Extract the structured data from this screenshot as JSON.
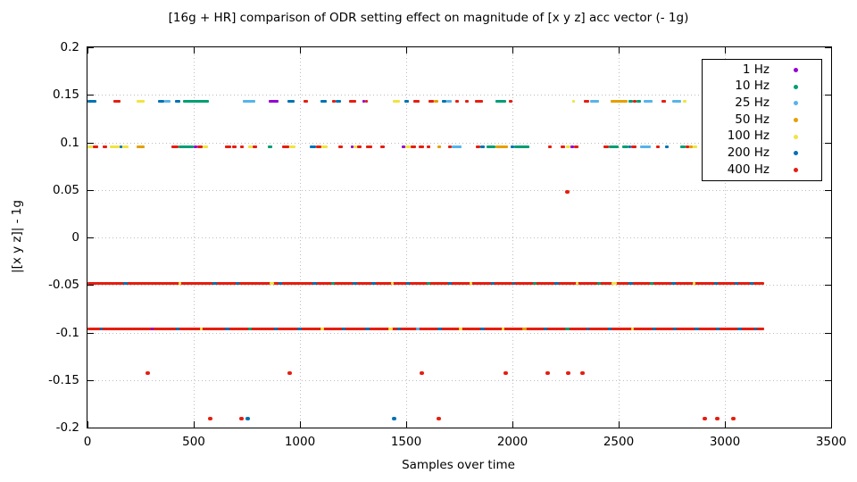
{
  "chart_data": {
    "type": "scatter",
    "title": "[16g + HR] comparison of ODR setting effect on magnitude of [x y z] acc vector (- 1g)",
    "xlabel": "Samples over time",
    "ylabel": "|[x y z]| - 1g",
    "xlim": [
      0,
      3500
    ],
    "ylim": [
      -0.2,
      0.2
    ],
    "xticks": [
      0,
      500,
      1000,
      1500,
      2000,
      2500,
      3000,
      3500
    ],
    "yticks": [
      0.2,
      0.15,
      0.1,
      0.05,
      0,
      -0.05,
      -0.1,
      -0.15,
      -0.2
    ],
    "grid": true,
    "grid_color": "#bcbcbc",
    "legend_position": "top-right",
    "series": [
      {
        "name": "1 Hz",
        "color": "#9400d3"
      },
      {
        "name": "10 Hz",
        "color": "#009e73"
      },
      {
        "name": "25 Hz",
        "color": "#56b4e9"
      },
      {
        "name": "50 Hz",
        "color": "#e69f00"
      },
      {
        "name": "100 Hz",
        "color": "#f0e442"
      },
      {
        "name": "200 Hz",
        "color": "#0072b2"
      },
      {
        "name": "400 Hz",
        "color": "#e51e10"
      }
    ],
    "bands": [
      {
        "y": 0.143,
        "x_range": [
          0,
          2870
        ],
        "segments": [
          [
            0,
            40,
            5
          ],
          [
            120,
            155,
            6
          ],
          [
            230,
            270,
            4
          ],
          [
            330,
            360,
            5
          ],
          [
            360,
            390,
            2
          ],
          [
            413,
            438,
            5
          ],
          [
            450,
            570,
            1
          ],
          [
            730,
            790,
            2
          ],
          [
            855,
            900,
            0
          ],
          [
            940,
            975,
            5
          ],
          [
            1018,
            1036,
            6
          ],
          [
            1095,
            1125,
            5
          ],
          [
            1150,
            1170,
            6
          ],
          [
            1170,
            1195,
            5
          ],
          [
            1230,
            1265,
            6
          ],
          [
            1296,
            1306,
            0
          ],
          [
            1308,
            1320,
            6
          ],
          [
            1437,
            1470,
            4
          ],
          [
            1490,
            1513,
            5
          ],
          [
            1533,
            1562,
            6
          ],
          [
            1604,
            1630,
            6
          ],
          [
            1630,
            1652,
            3
          ],
          [
            1667,
            1690,
            5
          ],
          [
            1690,
            1713,
            2
          ],
          [
            1733,
            1750,
            6
          ],
          [
            1778,
            1795,
            6
          ],
          [
            1825,
            1862,
            6
          ],
          [
            1920,
            1972,
            1
          ],
          [
            1985,
            2000,
            6
          ],
          [
            2283,
            2296,
            4
          ],
          [
            2338,
            2360,
            6
          ],
          [
            2367,
            2408,
            2
          ],
          [
            2462,
            2542,
            3
          ],
          [
            2546,
            2566,
            1
          ],
          [
            2566,
            2582,
            6
          ],
          [
            2582,
            2604,
            1
          ],
          [
            2617,
            2658,
            2
          ],
          [
            2700,
            2722,
            6
          ],
          [
            2750,
            2796,
            2
          ],
          [
            2804,
            2818,
            4
          ]
        ]
      },
      {
        "y": 0.095,
        "x_range": [
          0,
          2870
        ],
        "segments": [
          [
            0,
            25,
            4
          ],
          [
            25,
            50,
            6
          ],
          [
            70,
            92,
            6
          ],
          [
            105,
            150,
            4
          ],
          [
            150,
            163,
            5
          ],
          [
            163,
            195,
            4
          ],
          [
            229,
            271,
            3
          ],
          [
            396,
            430,
            6
          ],
          [
            430,
            500,
            1
          ],
          [
            500,
            515,
            0
          ],
          [
            515,
            540,
            6
          ],
          [
            540,
            567,
            4
          ],
          [
            648,
            678,
            6
          ],
          [
            682,
            702,
            6
          ],
          [
            718,
            735,
            6
          ],
          [
            758,
            778,
            4
          ],
          [
            778,
            800,
            6
          ],
          [
            848,
            870,
            1
          ],
          [
            918,
            950,
            6
          ],
          [
            950,
            980,
            4
          ],
          [
            1048,
            1075,
            5
          ],
          [
            1075,
            1100,
            6
          ],
          [
            1100,
            1130,
            4
          ],
          [
            1180,
            1202,
            6
          ],
          [
            1240,
            1252,
            0
          ],
          [
            1252,
            1270,
            4
          ],
          [
            1270,
            1292,
            6
          ],
          [
            1310,
            1340,
            6
          ],
          [
            1378,
            1400,
            6
          ],
          [
            1478,
            1494,
            0
          ],
          [
            1494,
            1520,
            4
          ],
          [
            1520,
            1545,
            6
          ],
          [
            1558,
            1582,
            6
          ],
          [
            1598,
            1615,
            6
          ],
          [
            1648,
            1665,
            3
          ],
          [
            1698,
            1715,
            6
          ],
          [
            1715,
            1760,
            2
          ],
          [
            1828,
            1850,
            6
          ],
          [
            1850,
            1870,
            5
          ],
          [
            1880,
            1920,
            1
          ],
          [
            1920,
            1980,
            3
          ],
          [
            1990,
            2010,
            5
          ],
          [
            2010,
            2080,
            1
          ],
          [
            2168,
            2185,
            6
          ],
          [
            2228,
            2250,
            6
          ],
          [
            2250,
            2275,
            4
          ],
          [
            2275,
            2290,
            0
          ],
          [
            2290,
            2312,
            6
          ],
          [
            2430,
            2455,
            6
          ],
          [
            2455,
            2500,
            1
          ],
          [
            2518,
            2545,
            1
          ],
          [
            2545,
            2560,
            5
          ],
          [
            2560,
            2582,
            6
          ],
          [
            2600,
            2650,
            2
          ],
          [
            2678,
            2695,
            6
          ],
          [
            2718,
            2735,
            5
          ],
          [
            2788,
            2815,
            1
          ],
          [
            2815,
            2830,
            6
          ],
          [
            2830,
            2850,
            3
          ],
          [
            2850,
            2870,
            4
          ]
        ]
      },
      {
        "y": -0.048,
        "x_range": [
          0,
          3185
        ],
        "base": 6,
        "interruptions": [
          [
            168,
            188,
            5
          ],
          [
            428,
            443,
            4
          ],
          [
            588,
            608,
            5
          ],
          [
            698,
            713,
            5
          ],
          [
            858,
            878,
            4
          ],
          [
            898,
            918,
            5
          ],
          [
            1058,
            1078,
            5
          ],
          [
            1148,
            1163,
            1
          ],
          [
            1248,
            1268,
            5
          ],
          [
            1338,
            1358,
            5
          ],
          [
            1428,
            1443,
            4
          ],
          [
            1498,
            1518,
            5
          ],
          [
            1598,
            1613,
            1
          ],
          [
            1698,
            1713,
            5
          ],
          [
            1798,
            1813,
            4
          ],
          [
            1898,
            1918,
            5
          ],
          [
            1998,
            2013,
            5
          ],
          [
            2098,
            2113,
            1
          ],
          [
            2198,
            2218,
            5
          ],
          [
            2298,
            2313,
            4
          ],
          [
            2398,
            2418,
            1
          ],
          [
            2468,
            2493,
            4
          ],
          [
            2548,
            2568,
            5
          ],
          [
            2648,
            2663,
            1
          ],
          [
            2748,
            2768,
            5
          ],
          [
            2848,
            2863,
            4
          ],
          [
            2948,
            2968,
            5
          ],
          [
            3048,
            3063,
            5
          ],
          [
            3118,
            3133,
            5
          ]
        ]
      },
      {
        "y": -0.096,
        "x_range": [
          0,
          3185
        ],
        "base": 6,
        "interruptions": [
          [
            58,
            73,
            5
          ],
          [
            298,
            313,
            0
          ],
          [
            418,
            433,
            5
          ],
          [
            528,
            543,
            4
          ],
          [
            648,
            668,
            5
          ],
          [
            758,
            773,
            1
          ],
          [
            878,
            893,
            5
          ],
          [
            988,
            1008,
            5
          ],
          [
            1098,
            1113,
            4
          ],
          [
            1198,
            1213,
            5
          ],
          [
            1308,
            1328,
            5
          ],
          [
            1418,
            1438,
            4
          ],
          [
            1458,
            1473,
            5
          ],
          [
            1548,
            1563,
            2
          ],
          [
            1648,
            1668,
            5
          ],
          [
            1748,
            1763,
            4
          ],
          [
            1848,
            1868,
            5
          ],
          [
            1948,
            1963,
            4
          ],
          [
            2048,
            2068,
            3
          ],
          [
            2148,
            2163,
            5
          ],
          [
            2248,
            2268,
            1
          ],
          [
            2348,
            2363,
            5
          ],
          [
            2448,
            2468,
            5
          ],
          [
            2558,
            2573,
            4
          ],
          [
            2658,
            2678,
            5
          ],
          [
            2758,
            2773,
            5
          ],
          [
            2858,
            2878,
            5
          ],
          [
            2958,
            2973,
            5
          ],
          [
            3058,
            3078,
            5
          ],
          [
            3138,
            3153,
            5
          ]
        ]
      }
    ],
    "outliers": [
      [
        2258,
        0.048,
        6
      ],
      [
        283,
        -0.143,
        6
      ],
      [
        950,
        -0.143,
        6
      ],
      [
        1575,
        -0.143,
        6
      ],
      [
        1970,
        -0.143,
        6
      ],
      [
        2167,
        -0.143,
        6
      ],
      [
        2263,
        -0.143,
        6
      ],
      [
        2329,
        -0.143,
        6
      ],
      [
        578,
        -0.191,
        6
      ],
      [
        726,
        -0.191,
        6
      ],
      [
        755,
        -0.191,
        5
      ],
      [
        1442,
        -0.191,
        5
      ],
      [
        1654,
        -0.191,
        6
      ],
      [
        2904,
        -0.191,
        6
      ],
      [
        2963,
        -0.191,
        6
      ],
      [
        3042,
        -0.191,
        6
      ]
    ]
  }
}
